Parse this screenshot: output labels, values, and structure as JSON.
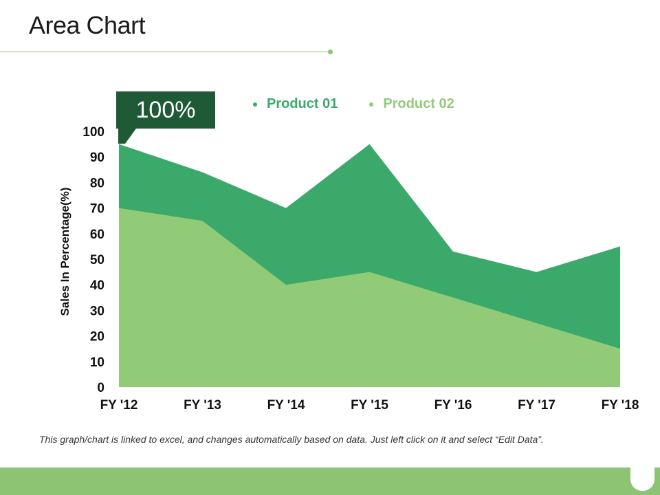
{
  "slide": {
    "title": "Area Chart",
    "callout": "100%",
    "footnote": "This graph/chart is linked to excel, and changes automatically based on data. Just left click on it and select “Edit Data”."
  },
  "chart_data": {
    "type": "area",
    "stacked": false,
    "categories": [
      "FY '12",
      "FY '13",
      "FY '14",
      "FY '15",
      "FY '16",
      "FY '17",
      "FY '18"
    ],
    "series": [
      {
        "name": "Product 01",
        "color": "#3aa96a",
        "values": [
          95,
          84,
          70,
          95,
          53,
          45,
          55
        ]
      },
      {
        "name": "Product 02",
        "color": "#92cb78",
        "values": [
          70,
          65,
          40,
          45,
          35,
          25,
          15
        ]
      }
    ],
    "ylabel": "Sales In Percentage(%)",
    "ylim": [
      0,
      100
    ],
    "yticks": [
      0,
      10,
      20,
      30,
      40,
      50,
      60,
      70,
      80,
      90,
      100
    ],
    "grid": false,
    "legend": "top"
  },
  "colors": {
    "accent": "#8cc474",
    "callout_bg": "#1e5a35"
  }
}
